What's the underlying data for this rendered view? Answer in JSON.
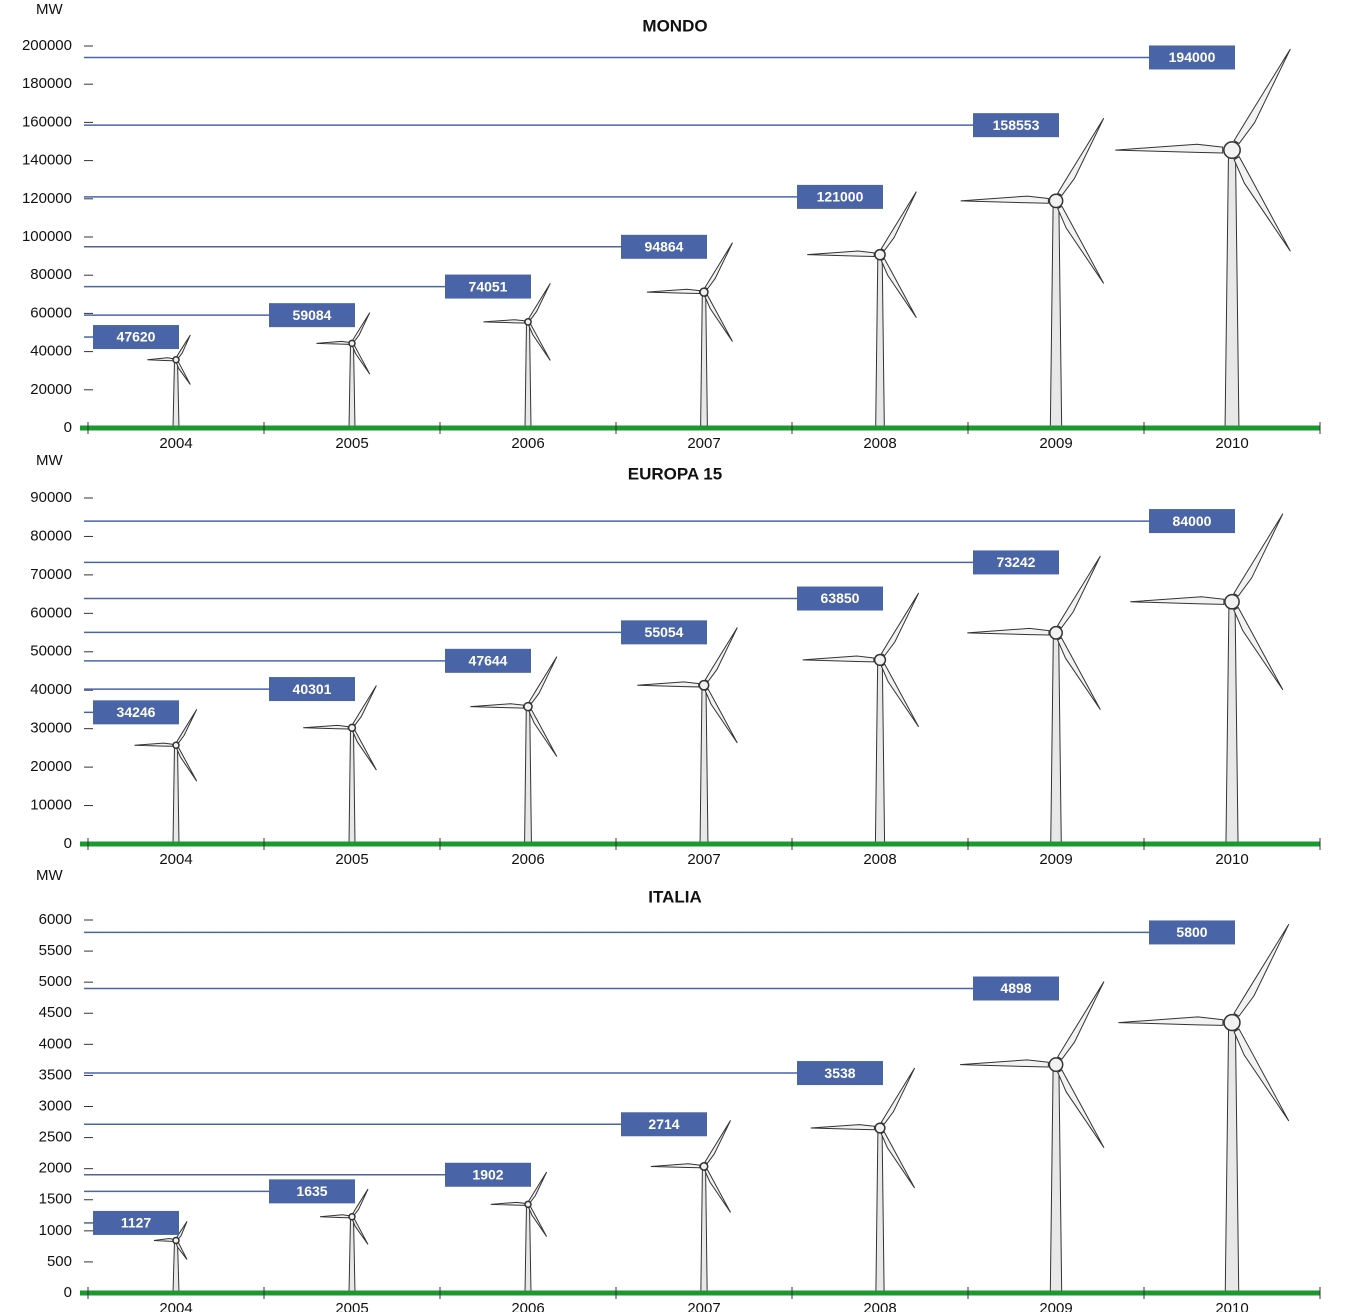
{
  "chart_data": [
    {
      "type": "bar",
      "title": "MONDO",
      "y_label": "MW",
      "categories": [
        "2004",
        "2005",
        "2006",
        "2007",
        "2008",
        "2009",
        "2010"
      ],
      "values": [
        47620,
        59084,
        74051,
        94864,
        121000,
        158553,
        194000
      ],
      "color": "#4a64a8",
      "baseline_color": "#1a9a2e",
      "ylim": [
        0,
        200000
      ],
      "yticks": [
        0,
        20000,
        40000,
        60000,
        80000,
        100000,
        120000,
        140000,
        160000,
        180000,
        200000
      ]
    },
    {
      "type": "bar",
      "title": "EUROPA 15",
      "y_label": "MW",
      "categories": [
        "2004",
        "2005",
        "2006",
        "2007",
        "2008",
        "2009",
        "2010"
      ],
      "values": [
        34246,
        40301,
        47644,
        55054,
        63850,
        73242,
        84000
      ],
      "color": "#4a64a8",
      "baseline_color": "#1a9a2e",
      "ylim": [
        0,
        90000
      ],
      "yticks": [
        0,
        10000,
        20000,
        30000,
        40000,
        50000,
        60000,
        70000,
        80000,
        90000
      ]
    },
    {
      "type": "bar",
      "title": "ITALIA",
      "y_label": "MW",
      "categories": [
        "2004",
        "2005",
        "2006",
        "2007",
        "2008",
        "2009",
        "2010"
      ],
      "values": [
        1127,
        1635,
        1902,
        2714,
        3538,
        4898,
        5800
      ],
      "color": "#4a64a8",
      "baseline_color": "#1a9a2e",
      "ylim": [
        0,
        6000
      ],
      "yticks": [
        0,
        500,
        1000,
        1500,
        2000,
        2500,
        3000,
        3500,
        4000,
        4500,
        5000,
        5500,
        6000
      ]
    }
  ]
}
